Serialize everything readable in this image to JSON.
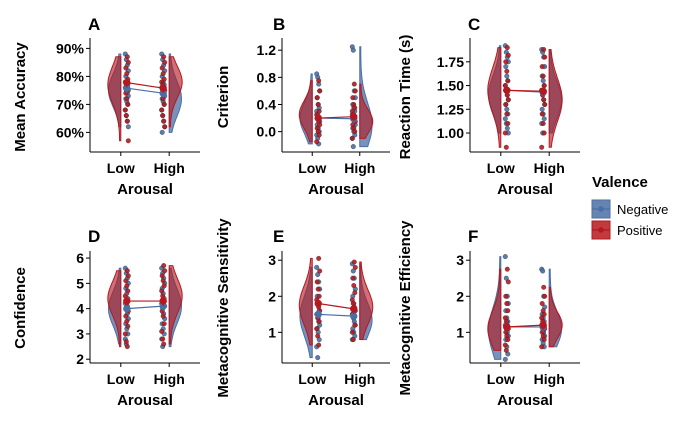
{
  "legend": {
    "title": "Valence",
    "items": [
      {
        "label": "Negative",
        "color": "#4a6fa5"
      },
      {
        "label": "Positive",
        "color": "#b5181f"
      }
    ]
  },
  "chart_data": [
    {
      "type": "violin",
      "panel": "A",
      "xlabel": "Arousal",
      "ylabel": "Mean Accuracy",
      "categories": [
        "Low",
        "High"
      ],
      "ylim": [
        53,
        93
      ],
      "ticks": [
        60,
        70,
        80,
        90
      ],
      "tick_labels": [
        "60%",
        "70%",
        "80%",
        "90%"
      ],
      "series": [
        {
          "name": "Negative",
          "means": [
            75.8,
            74.0
          ],
          "range": [
            [
              62,
              88
            ],
            [
              60,
              88
            ]
          ],
          "mode": [
            75,
            72
          ],
          "points": [
            [
              88,
              86,
              84,
              82,
              80,
              78,
              77,
              76,
              75,
              74,
              73,
              72,
              71,
              70,
              68,
              66,
              64,
              62
            ],
            [
              88,
              86,
              84,
              82,
              80,
              78,
              77,
              76,
              75,
              74,
              73,
              72,
              71,
              70,
              68,
              66,
              64,
              62,
              60
            ]
          ]
        },
        {
          "name": "Positive",
          "means": [
            77.8,
            75.8
          ],
          "range": [
            [
              57,
              87
            ],
            [
              62,
              87
            ]
          ],
          "mode": [
            77,
            78
          ],
          "points": [
            [
              87,
              85,
              83,
              81,
              79,
              78,
              77,
              76,
              75,
              74,
              72,
              70,
              68,
              66,
              64,
              57
            ],
            [
              87,
              85,
              83,
              81,
              79,
              78,
              77,
              76,
              75,
              74,
              72,
              70,
              68,
              66,
              64,
              62
            ]
          ]
        }
      ]
    },
    {
      "type": "violin",
      "panel": "B",
      "xlabel": "Arousal",
      "ylabel": "Criterion",
      "categories": [
        "Low",
        "High"
      ],
      "ylim": [
        -0.3,
        1.35
      ],
      "ticks": [
        0,
        0.4,
        0.8,
        1.2
      ],
      "tick_labels": [
        "0.0",
        "0.4",
        "0.8",
        "1.2"
      ],
      "series": [
        {
          "name": "Negative",
          "means": [
            0.2,
            0.19
          ],
          "range": [
            [
              -0.18,
              0.85
            ],
            [
              -0.22,
              1.25
            ]
          ],
          "mode": [
            0.2,
            0.1
          ],
          "points": [
            [
              0.85,
              0.8,
              0.7,
              0.6,
              0.5,
              0.4,
              0.35,
              0.3,
              0.25,
              0.2,
              0.15,
              0.1,
              0.05,
              0.0,
              -0.05,
              -0.1,
              -0.18
            ],
            [
              1.25,
              1.2,
              0.6,
              0.5,
              0.4,
              0.35,
              0.3,
              0.25,
              0.2,
              0.15,
              0.1,
              0.05,
              0.0,
              -0.05,
              -0.1,
              -0.22
            ]
          ]
        },
        {
          "name": "Positive",
          "means": [
            0.2,
            0.22
          ],
          "range": [
            [
              -0.15,
              0.75
            ],
            [
              -0.1,
              0.7
            ]
          ],
          "mode": [
            0.25,
            0.15
          ],
          "points": [
            [
              0.75,
              0.6,
              0.5,
              0.4,
              0.3,
              0.25,
              0.2,
              0.15,
              0.1,
              0.05,
              0.0,
              -0.05,
              -0.15
            ],
            [
              0.7,
              0.6,
              0.5,
              0.4,
              0.35,
              0.3,
              0.25,
              0.2,
              0.15,
              0.1,
              0.05,
              0.0,
              -0.1
            ]
          ]
        }
      ]
    },
    {
      "type": "violin",
      "panel": "C",
      "xlabel": "Arousal",
      "ylabel": "Reaction Time (s)",
      "categories": [
        "Low",
        "High"
      ],
      "ylim": [
        0.8,
        1.98
      ],
      "ticks": [
        1.0,
        1.25,
        1.5,
        1.75
      ],
      "tick_labels": [
        "1.00",
        "1.25",
        "1.50",
        "1.75"
      ],
      "series": [
        {
          "name": "Negative",
          "means": [
            1.45,
            1.43
          ],
          "range": [
            [
              1.0,
              1.92
            ],
            [
              1.0,
              1.88
            ]
          ],
          "mode": [
            1.4,
            1.35
          ],
          "points": [
            [
              1.92,
              1.85,
              1.8,
              1.75,
              1.7,
              1.6,
              1.55,
              1.5,
              1.45,
              1.4,
              1.35,
              1.3,
              1.25,
              1.2,
              1.15,
              1.1,
              1.05,
              1.0
            ],
            [
              1.88,
              1.85,
              1.8,
              1.7,
              1.6,
              1.55,
              1.5,
              1.45,
              1.4,
              1.35,
              1.3,
              1.25,
              1.2,
              1.15,
              1.1,
              1.0
            ]
          ]
        },
        {
          "name": "Positive",
          "means": [
            1.45,
            1.44
          ],
          "range": [
            [
              0.85,
              1.9
            ],
            [
              0.85,
              1.88
            ]
          ],
          "mode": [
            1.45,
            1.35
          ],
          "points": [
            [
              1.9,
              1.82,
              1.75,
              1.65,
              1.55,
              1.5,
              1.45,
              1.4,
              1.35,
              1.3,
              1.2,
              1.1,
              1.0,
              0.85
            ],
            [
              1.88,
              1.8,
              1.7,
              1.6,
              1.5,
              1.45,
              1.4,
              1.35,
              1.3,
              1.2,
              1.1,
              1.0,
              0.85
            ]
          ]
        }
      ]
    },
    {
      "type": "violin",
      "panel": "D",
      "xlabel": "Arousal",
      "ylabel": "Confidence",
      "categories": [
        "Low",
        "High"
      ],
      "ylim": [
        1.85,
        6.2
      ],
      "ticks": [
        2,
        3,
        4,
        5,
        6
      ],
      "tick_labels": [
        "2",
        "3",
        "4",
        "5",
        "6"
      ],
      "series": [
        {
          "name": "Negative",
          "means": [
            4.0,
            4.1
          ],
          "range": [
            [
              2.6,
              5.6
            ],
            [
              2.5,
              5.6
            ]
          ],
          "mode": [
            4.0,
            4.1
          ],
          "points": [
            [
              5.6,
              5.4,
              5.2,
              5.0,
              4.8,
              4.6,
              4.4,
              4.2,
              4.0,
              3.8,
              3.6,
              3.4,
              3.2,
              3.0,
              2.8,
              2.6
            ],
            [
              5.6,
              5.4,
              5.2,
              5.0,
              4.8,
              4.6,
              4.4,
              4.2,
              4.0,
              3.8,
              3.6,
              3.4,
              3.2,
              3.0,
              2.8,
              2.5
            ]
          ]
        },
        {
          "name": "Positive",
          "means": [
            4.3,
            4.3
          ],
          "range": [
            [
              2.5,
              5.5
            ],
            [
              2.6,
              5.7
            ]
          ],
          "mode": [
            4.4,
            4.5
          ],
          "points": [
            [
              5.5,
              5.3,
              5.1,
              4.9,
              4.7,
              4.5,
              4.3,
              4.1,
              3.9,
              3.7,
              3.5,
              3.3,
              3.0,
              2.7,
              2.5
            ],
            [
              5.7,
              5.5,
              5.3,
              5.1,
              4.9,
              4.7,
              4.5,
              4.3,
              4.1,
              3.9,
              3.7,
              3.4,
              3.1,
              2.8,
              2.6
            ]
          ]
        }
      ]
    },
    {
      "type": "violin",
      "panel": "E",
      "xlabel": "Arousal",
      "ylabel": "Metacognitive Sensitivity",
      "categories": [
        "Low",
        "High"
      ],
      "ylim": [
        0.15,
        3.2
      ],
      "ticks": [
        1,
        2,
        3
      ],
      "tick_labels": [
        "1",
        "2",
        "3"
      ],
      "series": [
        {
          "name": "Negative",
          "means": [
            1.5,
            1.45
          ],
          "range": [
            [
              0.3,
              2.8
            ],
            [
              0.8,
              2.9
            ]
          ],
          "mode": [
            1.45,
            1.35
          ],
          "points": [
            [
              2.8,
              2.6,
              2.4,
              2.2,
              2.0,
              1.8,
              1.6,
              1.5,
              1.4,
              1.3,
              1.2,
              1.1,
              1.0,
              0.8,
              0.6,
              0.3
            ],
            [
              2.9,
              2.7,
              2.5,
              2.2,
              2.0,
              1.8,
              1.6,
              1.5,
              1.4,
              1.3,
              1.2,
              1.1,
              1.0,
              0.9,
              0.8
            ]
          ]
        },
        {
          "name": "Positive",
          "means": [
            1.8,
            1.65
          ],
          "range": [
            [
              0.65,
              3.05
            ],
            [
              0.8,
              2.95
            ]
          ],
          "mode": [
            1.75,
            1.7
          ],
          "points": [
            [
              3.05,
              2.7,
              2.4,
              2.2,
              2.0,
              1.9,
              1.8,
              1.7,
              1.6,
              1.5,
              1.4,
              1.3,
              1.1,
              0.9,
              0.65
            ],
            [
              2.95,
              2.8,
              2.5,
              2.3,
              2.1,
              1.9,
              1.8,
              1.7,
              1.6,
              1.5,
              1.4,
              1.2,
              1.0,
              0.8
            ]
          ]
        }
      ]
    },
    {
      "type": "violin",
      "panel": "F",
      "xlabel": "Arousal",
      "ylabel": "Metacognitive Efficiency",
      "categories": [
        "Low",
        "High"
      ],
      "ylim": [
        0.15,
        3.2
      ],
      "ticks": [
        1,
        2,
        3
      ],
      "tick_labels": [
        "1",
        "2",
        "3"
      ],
      "series": [
        {
          "name": "Negative",
          "means": [
            1.15,
            1.15
          ],
          "range": [
            [
              0.25,
              3.1
            ],
            [
              0.6,
              2.75
            ]
          ],
          "mode": [
            1.05,
            1.1
          ],
          "points": [
            [
              3.1,
              2.5,
              2.0,
              1.8,
              1.6,
              1.4,
              1.3,
              1.2,
              1.1,
              1.0,
              0.9,
              0.8,
              0.6,
              0.4,
              0.25
            ],
            [
              2.75,
              2.7,
              2.0,
              1.7,
              1.5,
              1.4,
              1.3,
              1.2,
              1.1,
              1.0,
              0.9,
              0.8,
              0.7,
              0.6
            ]
          ]
        },
        {
          "name": "Positive",
          "means": [
            1.15,
            1.2
          ],
          "range": [
            [
              0.5,
              2.75
            ],
            [
              0.6,
              2.25
            ]
          ],
          "mode": [
            1.1,
            1.2
          ],
          "points": [
            [
              2.75,
              2.4,
              2.0,
              1.8,
              1.6,
              1.4,
              1.3,
              1.2,
              1.1,
              1.0,
              0.9,
              0.8,
              0.65,
              0.5
            ],
            [
              2.25,
              2.0,
              1.8,
              1.6,
              1.5,
              1.4,
              1.3,
              1.2,
              1.1,
              1.0,
              0.9,
              0.8,
              0.6
            ]
          ]
        }
      ]
    }
  ]
}
